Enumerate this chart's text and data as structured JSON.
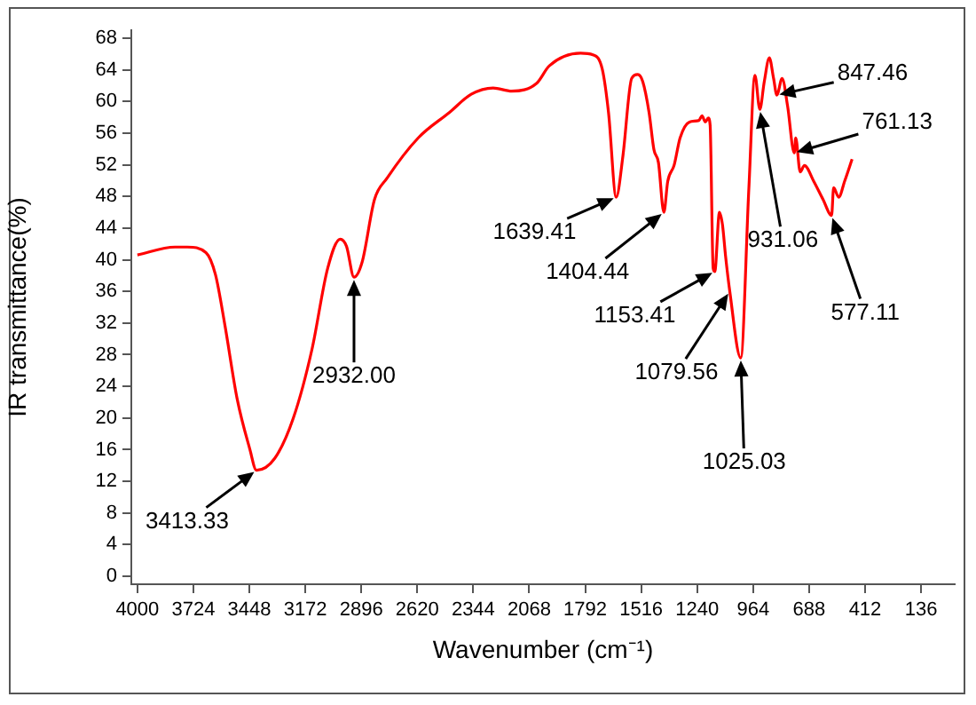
{
  "chart_data": {
    "type": "line",
    "xlabel": "Wavenumber (cm⁻¹)",
    "ylabel": "IR transmittance(%)",
    "xlim": [
      4030,
      -30
    ],
    "xticks": [
      4000,
      3724,
      3448,
      3172,
      2896,
      2620,
      2344,
      2068,
      1792,
      1516,
      1240,
      964,
      688,
      412,
      136
    ],
    "ylim": [
      -1,
      69
    ],
    "yticks": [
      0,
      4,
      8,
      12,
      16,
      20,
      24,
      28,
      32,
      36,
      40,
      44,
      48,
      52,
      56,
      60,
      64,
      68
    ],
    "grid": false,
    "legend": false,
    "marker": "none",
    "line_style": "solid",
    "series": [
      {
        "color": "#ff0000",
        "x": [
          4000,
          3815,
          3754,
          3662,
          3615,
          3569,
          3508,
          3446,
          3413,
          3323,
          3231,
          3139,
          3062,
          3000,
          2969,
          2932,
          2892,
          2831,
          2769,
          2615,
          2462,
          2354,
          2246,
          2154,
          2031,
          1969,
          1815,
          1754,
          1708,
          1677,
          1639,
          1606,
          1563,
          1533,
          1508,
          1477,
          1453,
          1431,
          1404,
          1385,
          1354,
          1324,
          1278,
          1231,
          1216,
          1200,
          1185,
          1176,
          1161,
          1153,
          1130,
          1115,
          1100,
          1079,
          1025,
          985,
          955,
          931,
          909,
          884,
          863,
          847,
          821,
          794,
          761,
          754,
          732,
          711,
          665,
          619,
          577,
          567,
          542,
          513,
          476
        ],
        "values": [
          40.6,
          41.6,
          41.6,
          40.9,
          38.1,
          31.8,
          22.4,
          16.1,
          13.4,
          14.9,
          20,
          28.7,
          38.9,
          42.6,
          41.7,
          37.8,
          39.7,
          47.6,
          50.3,
          55.4,
          58.6,
          60.9,
          61.7,
          61.3,
          62.3,
          64.5,
          66.1,
          65.9,
          64.1,
          58.6,
          47.9,
          53.1,
          62.9,
          63.4,
          62.5,
          58.6,
          53.9,
          52.3,
          46,
          49.9,
          51.9,
          55.4,
          57.4,
          57.6,
          58.2,
          57.4,
          57.9,
          57,
          38.9,
          38.5,
          46,
          44.4,
          40.5,
          36,
          27.6,
          49,
          63.3,
          59,
          62.5,
          65.5,
          62.9,
          60.8,
          62.9,
          59.4,
          53.5,
          55.4,
          51.1,
          51.9,
          49.9,
          47.6,
          45.6,
          49.1,
          47.9,
          49.9,
          52.7
        ]
      }
    ],
    "annotations": [
      {
        "text": "3413.33",
        "x": 3413.33,
        "y": 13.4
      },
      {
        "text": "2932.00",
        "x": 2932,
        "y": 37.8
      },
      {
        "text": "1639.41",
        "x": 1639.41,
        "y": 47.9
      },
      {
        "text": "1404.44",
        "x": 1404.44,
        "y": 46
      },
      {
        "text": "1153.41",
        "x": 1153.41,
        "y": 38.5
      },
      {
        "text": "1079.56",
        "x": 1079.56,
        "y": 36
      },
      {
        "text": "1025.03",
        "x": 1025.03,
        "y": 27.6
      },
      {
        "text": "931.06",
        "x": 931.06,
        "y": 59
      },
      {
        "text": "847.46",
        "x": 847.46,
        "y": 60.8
      },
      {
        "text": "761.13",
        "x": 761.13,
        "y": 53.5
      },
      {
        "text": "577.11",
        "x": 577.11,
        "y": 45.6
      }
    ]
  }
}
